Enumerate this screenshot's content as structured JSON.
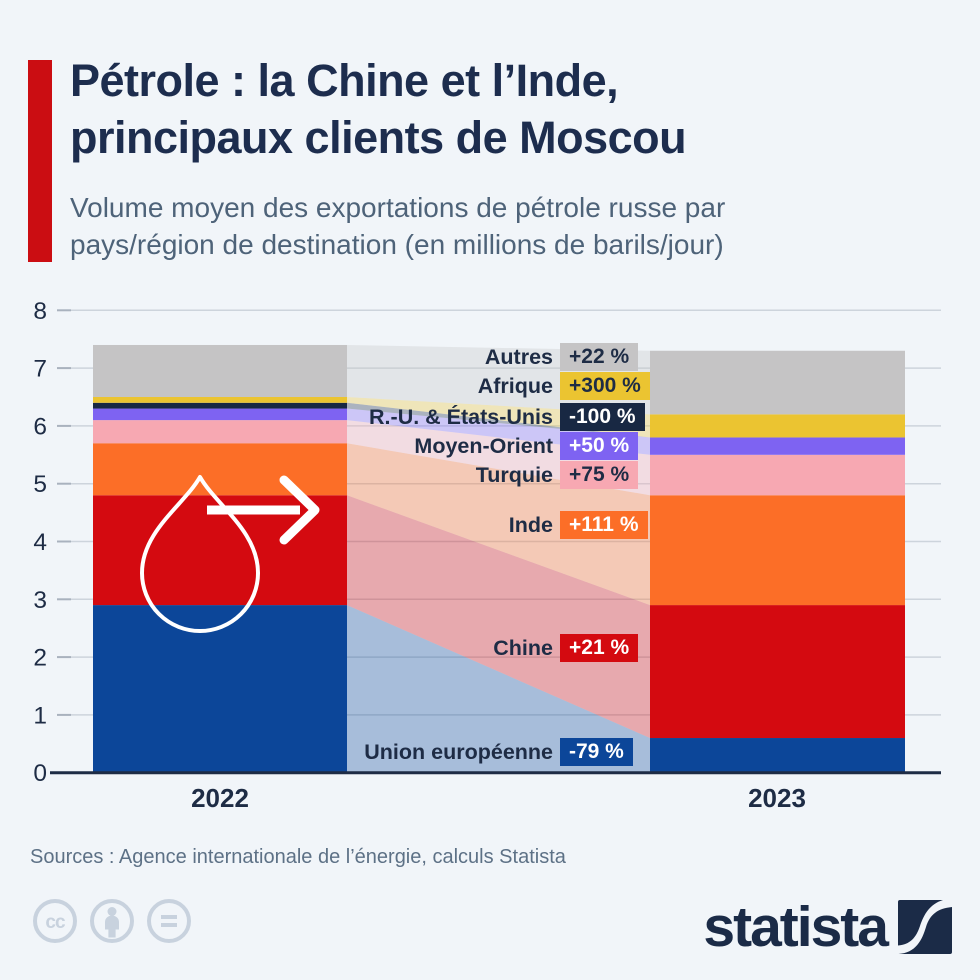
{
  "header": {
    "title_line1": "Pétrole : la Chine et l’Inde,",
    "title_line2": "principaux clients de Moscou",
    "subtitle_line1": "Volume moyen des exportations de pétrole russe par",
    "subtitle_line2": "pays/région de destination (en millions de barils/jour)"
  },
  "chart_data": {
    "type": "bar",
    "variant": "stacked-columns-with-flow-bands",
    "title": "Volume moyen des exportations de pétrole russe par pays/région de destination",
    "unit": "millions de barils/jour",
    "categories": [
      "2022",
      "2023"
    ],
    "series": [
      {
        "name": "Union européenne",
        "values": [
          2.9,
          0.6
        ],
        "change": "-79 %",
        "color": "#0c4699",
        "badge_text_color": "#ffffff"
      },
      {
        "name": "Chine",
        "values": [
          1.9,
          2.3
        ],
        "change": "+21 %",
        "color": "#d40a10",
        "badge_text_color": "#ffffff"
      },
      {
        "name": "Inde",
        "values": [
          0.9,
          1.9
        ],
        "change": "+111 %",
        "color": "#fc6e27",
        "badge_text_color": "#ffffff"
      },
      {
        "name": "Turquie",
        "values": [
          0.4,
          0.7
        ],
        "change": "+75 %",
        "color": "#f7a8b2",
        "badge_text_color": "#1e2c45"
      },
      {
        "name": "Moyen-Orient",
        "values": [
          0.2,
          0.3
        ],
        "change": "+50 %",
        "color": "#7e63f2",
        "badge_text_color": "#ffffff"
      },
      {
        "name": "R.-U. & États-Unis",
        "values": [
          0.1,
          0.0
        ],
        "change": "-100 %",
        "color": "#182843",
        "badge_text_color": "#ffffff"
      },
      {
        "name": "Afrique",
        "values": [
          0.1,
          0.4
        ],
        "change": "+300 %",
        "color": "#ebc431",
        "badge_text_color": "#1e2c45"
      },
      {
        "name": "Autres",
        "values": [
          0.9,
          1.1
        ],
        "change": "+22 %",
        "color": "#c5c4c5",
        "badge_text_color": "#1e2c45"
      }
    ],
    "ylim": [
      0,
      8
    ],
    "yticks": [
      0,
      1,
      2,
      3,
      4,
      5,
      6,
      7,
      8
    ],
    "grid": true,
    "legend_position": "inline-labels",
    "totals": {
      "2022": 7.4,
      "2023": 7.3
    }
  },
  "footer": {
    "sources": "Sources : Agence internationale de l’énergie, calculs Statista",
    "brand": "statista"
  },
  "colors": {
    "background": "#f1f5f9",
    "accent_red": "#cb0d12",
    "title_text": "#1d2d4e",
    "subtitle_text": "#4e6379",
    "axis_text": "#1e2c45",
    "gridline": "#cdd4dc",
    "flow_opacity": "0.32",
    "sources_text": "#5d7186",
    "cc_icons": "#c8d2de",
    "logo_navy": "#1b2b47"
  }
}
